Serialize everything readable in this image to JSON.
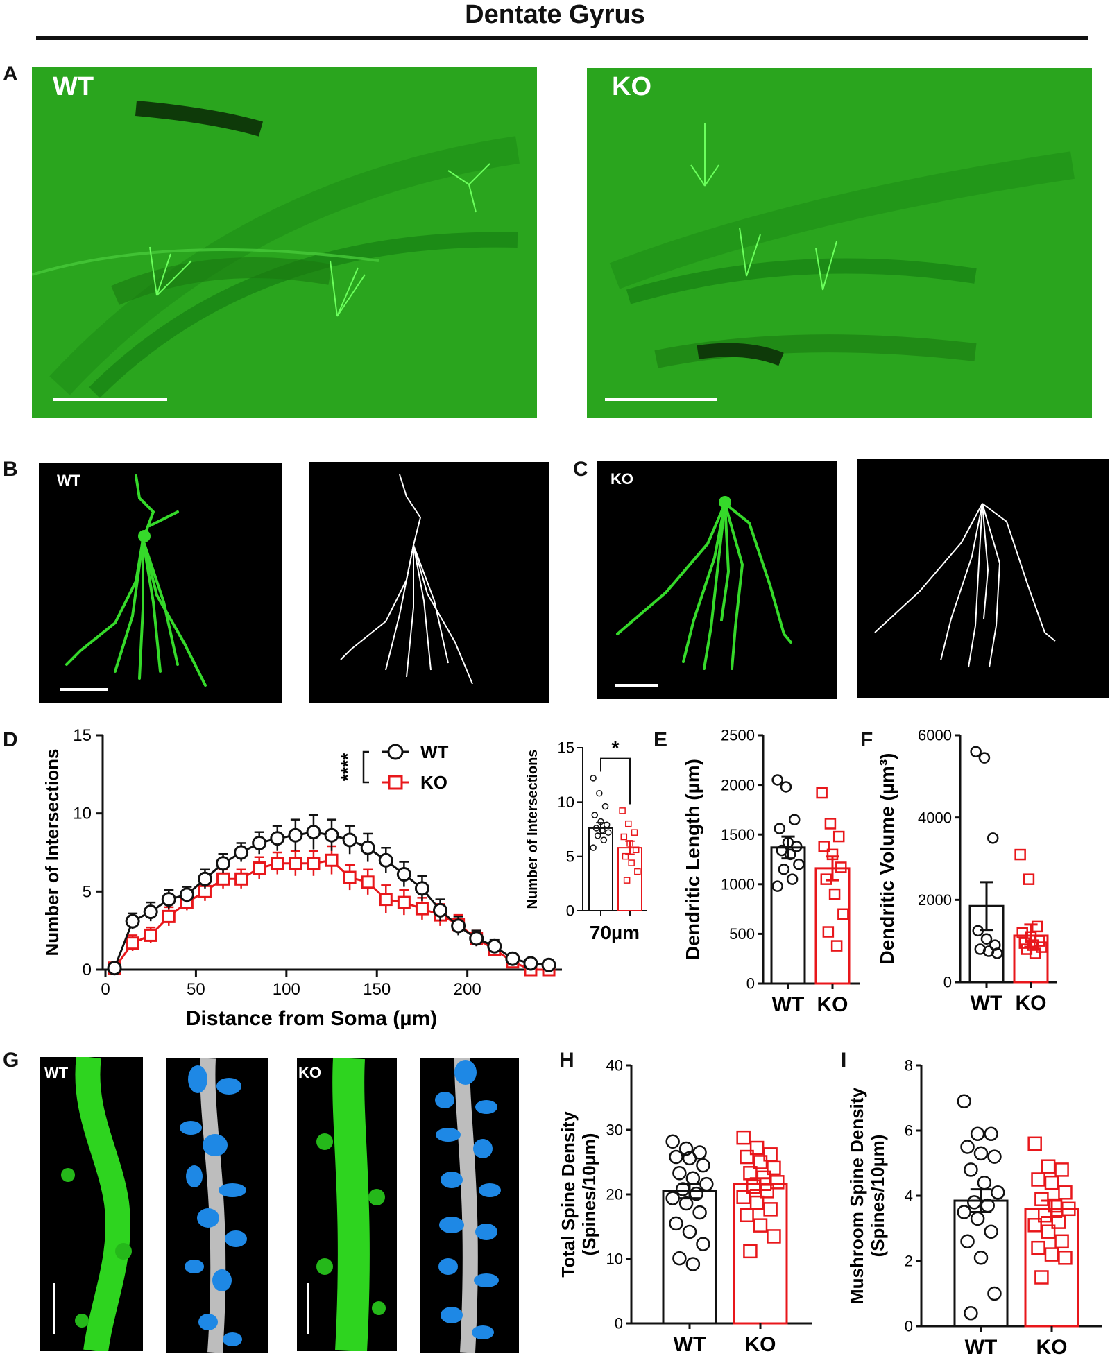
{
  "figure": {
    "title": "Dentate Gyrus",
    "panels": {
      "A": "A",
      "B": "B",
      "C": "C",
      "D": "D",
      "E": "E",
      "F": "F",
      "G": "G",
      "H": "H",
      "I": "I"
    },
    "image_labels": {
      "a_wt": "WT",
      "a_ko": "KO",
      "b_wt": "WT",
      "c_ko": "KO",
      "g_wt": "WT",
      "g_ko": "KO"
    },
    "colors": {
      "wt": "#111111",
      "ko": "#e8171b",
      "green": "#2aa51e",
      "spine": "#1e88e5"
    }
  },
  "chart_data": [
    {
      "id": "D",
      "type": "line",
      "xlabel": "Distance from Soma (µm)",
      "ylabel": "Number of Intersections",
      "xlim": [
        0,
        250
      ],
      "ylim": [
        0,
        15
      ],
      "xticks": [
        0,
        50,
        100,
        150,
        200
      ],
      "yticks": [
        0,
        5,
        10,
        15
      ],
      "significance": "****",
      "legend_position": "top-right",
      "x": [
        5,
        15,
        25,
        35,
        45,
        55,
        65,
        75,
        85,
        95,
        105,
        115,
        125,
        135,
        145,
        155,
        165,
        175,
        185,
        195,
        205,
        215,
        225,
        235,
        245
      ],
      "series": [
        {
          "name": "WT",
          "marker": "circle",
          "values": [
            0.1,
            3.1,
            3.7,
            4.5,
            4.8,
            5.8,
            6.8,
            7.5,
            8.1,
            8.4,
            8.6,
            8.8,
            8.6,
            8.3,
            7.8,
            7.0,
            6.1,
            5.2,
            3.8,
            2.8,
            2.0,
            1.5,
            0.7,
            0.4,
            0.3
          ],
          "errors": [
            0.2,
            0.5,
            0.6,
            0.6,
            0.5,
            0.6,
            0.6,
            0.6,
            0.7,
            0.8,
            1.0,
            1.1,
            1.0,
            0.9,
            0.9,
            0.8,
            0.8,
            0.8,
            0.7,
            0.6,
            0.5,
            0.4,
            0.3,
            0.2,
            0.2
          ]
        },
        {
          "name": "KO",
          "marker": "square",
          "values": [
            0.1,
            1.7,
            2.2,
            3.4,
            4.3,
            5.0,
            5.8,
            5.8,
            6.5,
            6.8,
            6.8,
            6.8,
            7.0,
            5.9,
            5.6,
            4.5,
            4.3,
            3.9,
            3.5,
            2.9,
            2.0,
            1.3,
            0.5,
            0.0,
            0.0
          ],
          "errors": [
            0.2,
            0.5,
            0.5,
            0.6,
            0.5,
            0.6,
            0.6,
            0.6,
            0.7,
            0.7,
            0.8,
            0.8,
            0.9,
            0.8,
            0.8,
            0.9,
            0.8,
            0.7,
            0.7,
            0.6,
            0.5,
            0.4,
            0.3,
            0.2,
            0.2
          ]
        }
      ]
    },
    {
      "id": "D-inset",
      "type": "bar",
      "ylabel": "Number of Intersections",
      "xlabel": "70µm",
      "ylim": [
        0,
        15
      ],
      "yticks": [
        0,
        5,
        10,
        15
      ],
      "significance": "*",
      "categories": [
        "WT",
        "KO"
      ],
      "values": [
        7.6,
        5.8
      ],
      "errors": [
        0.5,
        0.6
      ],
      "points": [
        [
          12.2,
          10.8,
          9.6,
          8.8,
          8.2,
          7.9,
          7.6,
          7.4,
          7.2,
          6.9,
          6.5,
          5.8
        ],
        [
          9.2,
          8.0,
          7.2,
          6.8,
          6.2,
          5.6,
          5.0,
          4.4,
          3.6,
          2.8
        ]
      ]
    },
    {
      "id": "E",
      "type": "bar",
      "ylabel": "Dendritic Length (µm)",
      "ylim": [
        0,
        2500
      ],
      "yticks": [
        0,
        500,
        1000,
        1500,
        2000,
        2500
      ],
      "categories": [
        "WT",
        "KO"
      ],
      "values": [
        1370,
        1160
      ],
      "errors": [
        110,
        120
      ],
      "points": [
        [
          2050,
          1980,
          1650,
          1560,
          1420,
          1380,
          1340,
          1300,
          1200,
          1150,
          1050,
          980
        ],
        [
          1920,
          1610,
          1480,
          1380,
          1300,
          1170,
          1050,
          900,
          700,
          520,
          380
        ]
      ]
    },
    {
      "id": "F",
      "type": "bar",
      "ylabel": "Dendritic Volume (µm³)",
      "ylim": [
        0,
        6000
      ],
      "yticks": [
        0,
        2000,
        4000,
        6000
      ],
      "categories": [
        "WT",
        "KO"
      ],
      "values": [
        1850,
        1130
      ],
      "errors": [
        580,
        270
      ],
      "points": [
        [
          5600,
          5450,
          3500,
          1250,
          1050,
          900,
          800,
          750,
          700
        ],
        [
          3100,
          2500,
          1350,
          1200,
          1100,
          1000,
          950,
          900,
          850,
          800,
          700
        ]
      ]
    },
    {
      "id": "H",
      "type": "bar",
      "ylabel": "Total Spine Density (Spines/10µm)",
      "ylim": [
        0,
        40
      ],
      "yticks": [
        0,
        10,
        20,
        30,
        40
      ],
      "categories": [
        "WT",
        "KO"
      ],
      "values": [
        20.5,
        21.6
      ],
      "errors": [
        1.1,
        0.9
      ],
      "points": [
        [
          28.2,
          27.1,
          26.5,
          25.8,
          25.6,
          24.5,
          23.3,
          22.5,
          21.6,
          20.8,
          20.1,
          19.4,
          18.6,
          17.2,
          15.5,
          14.2,
          12.3,
          10.1,
          9.2
        ],
        [
          28.8,
          27.2,
          26.2,
          25.8,
          25.0,
          24.1,
          23.3,
          22.6,
          21.9,
          21.2,
          20.5,
          19.6,
          18.7,
          17.7,
          16.8,
          15.2,
          13.5,
          11.2
        ]
      ]
    },
    {
      "id": "I",
      "type": "bar",
      "ylabel": "Mushroom Spine Density (Spines/10µm)",
      "ylim": [
        0,
        8
      ],
      "yticks": [
        0,
        2,
        4,
        6,
        8
      ],
      "categories": [
        "WT",
        "KO"
      ],
      "values": [
        3.85,
        3.6
      ],
      "errors": [
        0.35,
        0.25
      ],
      "points": [
        [
          6.9,
          5.9,
          5.9,
          5.5,
          5.3,
          5.2,
          4.8,
          4.4,
          4.1,
          3.8,
          3.7,
          3.5,
          3.3,
          2.9,
          2.6,
          2.1,
          1.0,
          0.4
        ],
        [
          5.6,
          4.9,
          4.8,
          4.5,
          4.4,
          4.1,
          3.9,
          3.7,
          3.6,
          3.4,
          3.2,
          3.1,
          2.9,
          2.6,
          2.4,
          2.2,
          2.1,
          1.5
        ]
      ]
    }
  ]
}
